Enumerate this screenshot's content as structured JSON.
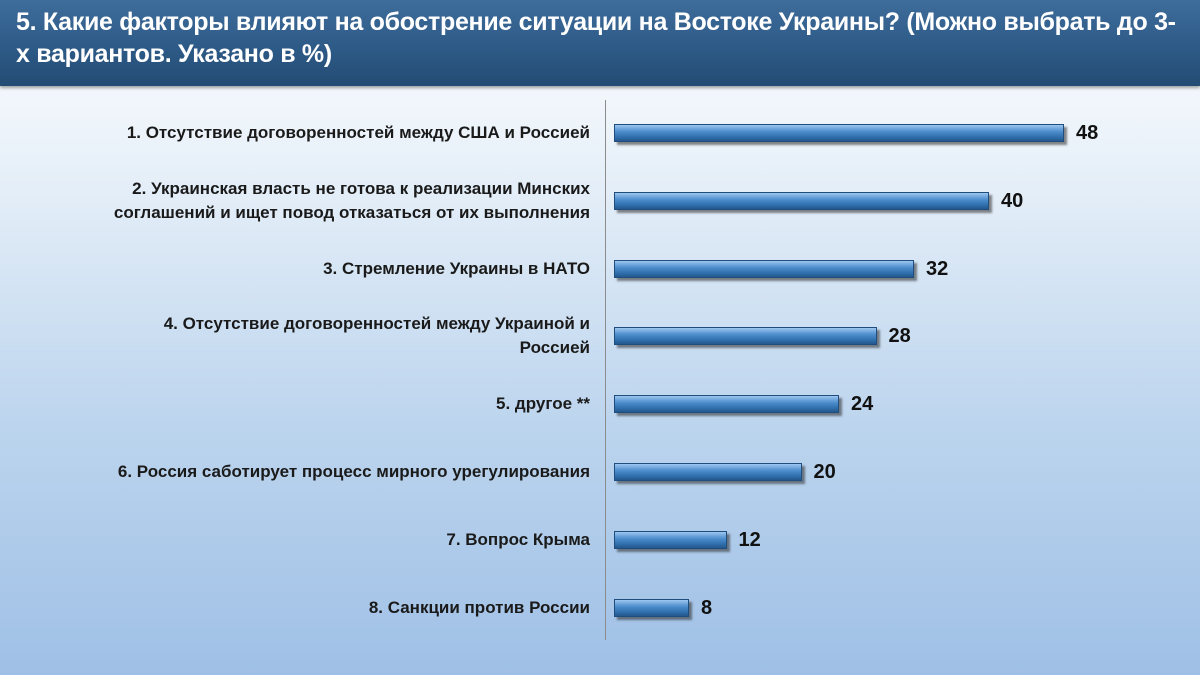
{
  "title": "5. Какие факторы влияют на обострение ситуации на Востоке Украины? (Можно выбрать до 3-х вариантов. Указано в %)",
  "chart_data": {
    "type": "bar",
    "orientation": "horizontal",
    "title": "5. Какие факторы влияют на обострение ситуации на Востоке Украины? (Можно выбрать до 3-х вариантов. Указано в %)",
    "categories": [
      [
        "1. Отсутствие договоренностей между США и Россией"
      ],
      [
        "2. Украинская власть не готова к реализации Минских",
        "соглашений и ищет повод отказаться от их выполнения"
      ],
      [
        "3. Стремление Украины в НАТО"
      ],
      [
        "4. Отсутствие договоренностей между Украиной и",
        "Россией"
      ],
      [
        "5. другое **"
      ],
      [
        "6. Россия саботирует процесс мирного урегулирования"
      ],
      [
        "7. Вопрос Крыма"
      ],
      [
        "8. Санкции против России"
      ]
    ],
    "values": [
      48,
      40,
      32,
      28,
      24,
      20,
      12,
      8
    ],
    "xlabel": "",
    "ylabel": "",
    "xlim": [
      0,
      50
    ],
    "grid": false,
    "legend": "none",
    "bar_color": "#3d7cc0"
  }
}
